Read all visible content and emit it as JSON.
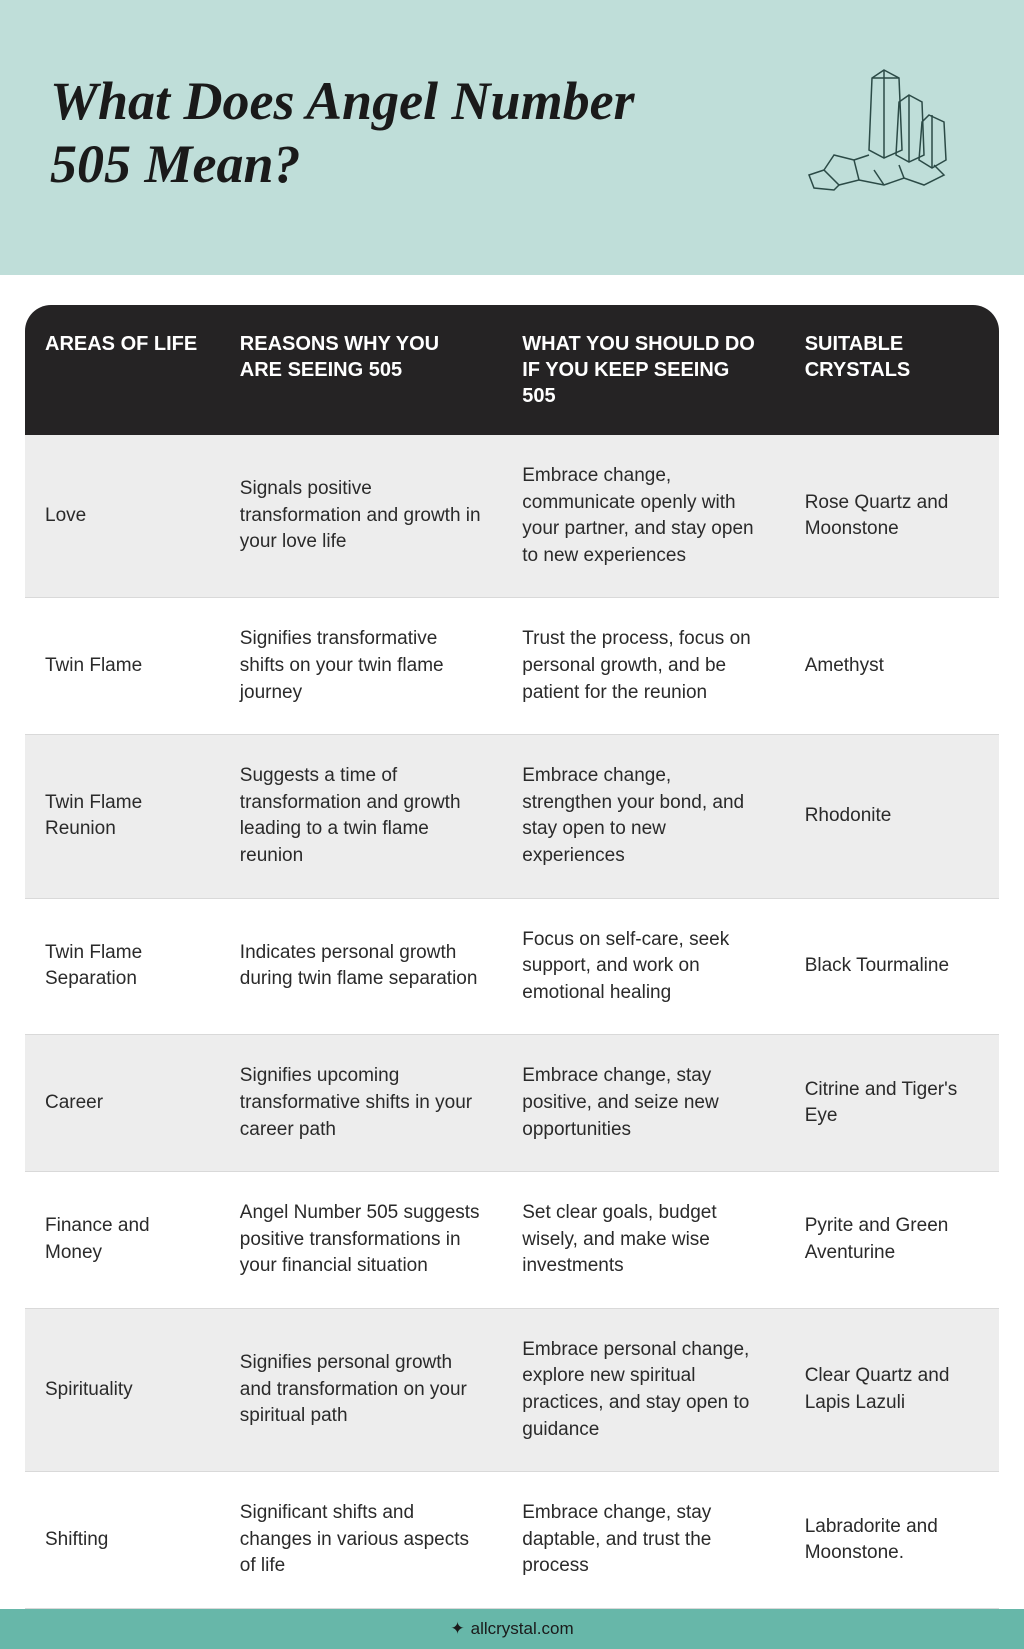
{
  "header": {
    "title": "What Does Angel Number 505 Mean?",
    "bg_color": "#bfded9",
    "title_color": "#1a1a1a",
    "title_fontsize": 54,
    "title_style": "italic",
    "crystal_icon_stroke": "#2b4a46"
  },
  "table": {
    "header_bg": "#252324",
    "header_text_color": "#ffffff",
    "row_alt_bg": "#ededed",
    "row_bg": "#ffffff",
    "text_color": "#2a2a2a",
    "border_radius": 26,
    "columns": [
      "AREAS OF LIFE",
      "REASONS WHY YOU ARE SEEING 505",
      "WHAT YOU SHOULD DO IF YOU KEEP SEEING 505",
      "SUITABLE CRYSTALS"
    ],
    "rows": [
      {
        "area": "Love",
        "reason": "Signals positive transformation and growth in your love life",
        "action": "Embrace change, communicate openly with your partner, and stay open to new experiences",
        "crystals": "Rose Quartz and Moonstone"
      },
      {
        "area": "Twin Flame",
        "reason": "Signifies transformative shifts on your twin flame journey",
        "action": "Trust the process, focus on personal growth, and be patient for the reunion",
        "crystals": "Amethyst"
      },
      {
        "area": "Twin Flame Reunion",
        "reason": "Suggests a time of transformation and growth leading to a twin flame reunion",
        "action": "Embrace change, strengthen your bond, and stay open to new experiences",
        "crystals": "Rhodonite"
      },
      {
        "area": "Twin Flame Separation",
        "reason": "Indicates personal growth during twin flame separation",
        "action": "Focus on self-care, seek support, and work on emotional healing",
        "crystals": "Black Tourmaline"
      },
      {
        "area": "Career",
        "reason": "Signifies upcoming transformative shifts in your career path",
        "action": "Embrace change, stay positive, and seize new opportunities",
        "crystals": "Citrine and Tiger's Eye"
      },
      {
        "area": "Finance and Money",
        "reason": "Angel Number 505 suggests positive transformations in your financial situation",
        "action": "Set clear goals, budget wisely, and make wise investments",
        "crystals": "Pyrite and Green Aventurine"
      },
      {
        "area": "Spirituality",
        "reason": "Signifies personal growth and transformation on your spiritual path",
        "action": "Embrace personal change, explore new spiritual practices, and stay open to guidance",
        "crystals": "Clear Quartz and Lapis Lazuli"
      },
      {
        "area": "Shifting",
        "reason": "Significant shifts and changes in various aspects of life",
        "action": "Embrace change, stay daptable, and trust the process",
        "crystals": "Labradorite and Moonstone."
      }
    ]
  },
  "footer": {
    "text": "allcrystal.com",
    "bg_color": "#67b7a9",
    "icon": "✦"
  }
}
